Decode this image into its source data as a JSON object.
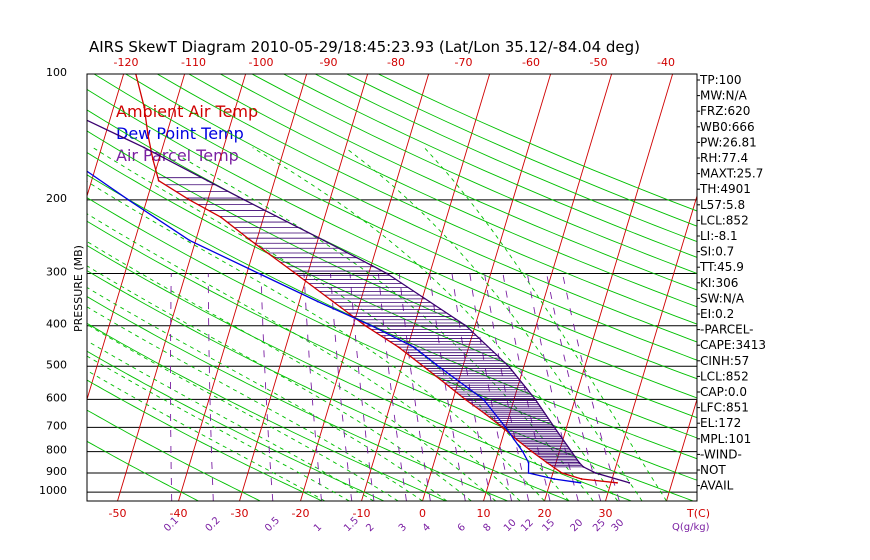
{
  "title": "AIRS SkewT Diagram 2010-05-29/18:45:23.93 (Lat/Lon 35.12/-84.04 deg)",
  "colors": {
    "ambient": "#d00000",
    "dewpoint": "#0000e0",
    "parcel": "#3a0070",
    "isotherm": "#d00000",
    "dry_adiabat": "#00c000",
    "moist_adiabat": "#00c000",
    "mixing_ratio": "#7a1fa2",
    "isobar": "#000000"
  },
  "chart_data": {
    "type": "line",
    "title": "AIRS SkewT Diagram 2010-05-29/18:45:23.93 (Lat/Lon 35.12/-84.04 deg)",
    "ylabel": "PRESSURE (MB)",
    "xlabel": "T(C)",
    "y_scale": "log",
    "y_range": [
      1050,
      100
    ],
    "x_range_bottom": [
      -55,
      45
    ],
    "pressure_ticks": [
      100,
      200,
      300,
      400,
      500,
      600,
      700,
      800,
      900,
      1000
    ],
    "pressure_tick_labels": [
      "100",
      "200",
      "300",
      "400",
      "500",
      "600",
      "700",
      "800",
      "900",
      "1000"
    ],
    "bottom_temp_ticks": [
      -50,
      -40,
      -30,
      -20,
      -10,
      0,
      10,
      20,
      30
    ],
    "bottom_temp_labels": [
      "-50",
      "-40",
      "-30",
      "-20",
      "-10",
      "0",
      "10",
      "20",
      "30"
    ],
    "top_temp_ticks": [
      -120,
      -110,
      -100,
      -90,
      -80,
      -70,
      -60,
      -50,
      -40
    ],
    "top_temp_labels": [
      "-120",
      "-110",
      "-100",
      "-90",
      "-80",
      "-70",
      "-60",
      "-50",
      "-40"
    ],
    "bottom_axis_unit": "T(C)",
    "mixing_ratio_values": [
      0.1,
      0.2,
      0.5,
      1,
      1.5,
      2,
      3,
      4,
      6,
      8,
      10,
      12,
      15,
      20,
      25,
      30
    ],
    "mixing_ratio_labels": [
      "0.1",
      "0.2",
      "0.5",
      "1",
      "1.5",
      "2",
      "3",
      "4",
      "6",
      "8",
      "10",
      "12",
      "15",
      "20",
      "25",
      "30"
    ],
    "mixing_ratio_unit": "Q(g/kg)",
    "legend": [
      {
        "name": "Ambient Air Temp",
        "color": "#d00000"
      },
      {
        "name": "Dew Point Temp",
        "color": "#0000e0"
      },
      {
        "name": "Air Parcel Temp",
        "color": "#3a0070"
      }
    ],
    "series": [
      {
        "name": "Ambient Air Temp",
        "pressure": [
          950,
          930,
          900,
          850,
          800,
          750,
          700,
          650,
          600,
          550,
          500,
          450,
          400,
          350,
          300,
          250,
          220,
          200,
          180,
          160,
          140,
          120,
          100
        ],
        "temperature": [
          31,
          25,
          21.5,
          18.5,
          15.5,
          12.5,
          9.5,
          6,
          2,
          -2,
          -6.5,
          -11.5,
          -18,
          -24.5,
          -32,
          -41,
          -47,
          -53,
          -59,
          -61,
          -63,
          -65,
          -68
        ]
      },
      {
        "name": "Dew Point Temp",
        "pressure": [
          950,
          930,
          900,
          850,
          800,
          700,
          600,
          500,
          450,
          400,
          350,
          300,
          250,
          200,
          150,
          125,
          100
        ],
        "temperature": [
          25,
          20.5,
          16,
          15.5,
          14,
          10,
          5,
          -4,
          -9,
          -17,
          -27,
          -38,
          -51,
          -63,
          -78,
          -88,
          -99
        ]
      },
      {
        "name": "Air Parcel Temp",
        "pressure": [
          950,
          900,
          870,
          850,
          800,
          700,
          600,
          500,
          400,
          300,
          250,
          200,
          180,
          150,
          125,
          100
        ],
        "temperature": [
          33,
          27,
          24.7,
          23.8,
          22,
          18,
          13.5,
          7.5,
          -1.5,
          -17,
          -29,
          -44,
          -51,
          -63,
          -76,
          -92
        ]
      }
    ],
    "indices": [
      "TP:100",
      "MW:N/A",
      "FRZ:620",
      "WB0:666",
      "PW:26.81",
      "RH:77.4",
      "MAXT:25.7",
      "TH:4901",
      "L57:5.8",
      "LCL:852",
      "LI:-8.1",
      "SI:0.7",
      "TT:45.9",
      "KI:306",
      "SW:N/A",
      "EI:0.2",
      "-PARCEL-",
      "CAPE:3413",
      "CINH:57",
      "LCL:852",
      "CAP:0.0",
      "LFC:851",
      "EL:172",
      "MPL:101",
      "-WIND-",
      "NOT",
      "AVAIL"
    ],
    "grid": true,
    "legend_position": "top-left"
  }
}
